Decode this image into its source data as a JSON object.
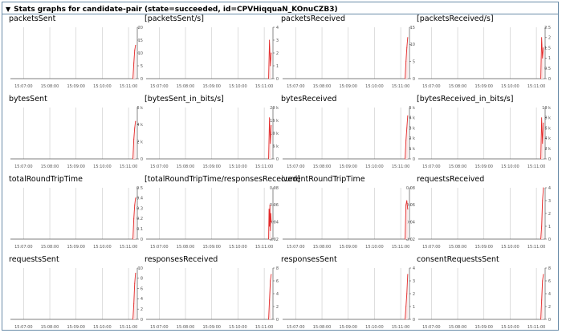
{
  "summary": {
    "toggle_icon": "triangle-down-icon",
    "text": "Stats graphs for candidate-pair (state=succeeded, id=CPVHiqquaN_KOnuCZB3)"
  },
  "colors": {
    "line": "#e32b2b",
    "fill": "#fbe2e2",
    "grid": "#c8c8c8",
    "axis": "#555555",
    "border": "#6a8ca8"
  },
  "time_ticks": [
    "15:07:00",
    "15:08:00",
    "15:09:00",
    "15:10:00",
    "15:11:00"
  ],
  "chart_data": [
    {
      "type": "line",
      "title": "packetsSent",
      "y_ticks": [
        "20",
        "15",
        "10",
        "5",
        "0"
      ],
      "ylim": [
        0,
        20
      ],
      "x": [
        "15:11:10",
        "15:11:12",
        "15:11:14",
        "15:11:16"
      ],
      "values": [
        0,
        6,
        11,
        13
      ]
    },
    {
      "type": "line",
      "title": "[packetsSent/s]",
      "y_ticks": [
        "4",
        "3",
        "2",
        "1",
        "0"
      ],
      "ylim": [
        0,
        4
      ],
      "x": [
        "15:11:10",
        "15:11:12",
        "15:11:14",
        "15:11:16"
      ],
      "values": [
        0,
        3,
        1,
        2
      ]
    },
    {
      "type": "line",
      "title": "packetsReceived",
      "y_ticks": [
        "15",
        "10",
        "5",
        "0"
      ],
      "ylim": [
        0,
        15
      ],
      "x": [
        "15:11:10",
        "15:11:12",
        "15:11:14",
        "15:11:16"
      ],
      "values": [
        0,
        5,
        9,
        12
      ]
    },
    {
      "type": "line",
      "title": "[packetsReceived/s]",
      "y_ticks": [
        "2.5",
        "2",
        "1.5",
        "1",
        "0.5",
        "0"
      ],
      "ylim": [
        0,
        2.5
      ],
      "x": [
        "15:11:10",
        "15:11:12",
        "15:11:14",
        "15:11:16"
      ],
      "values": [
        0,
        2,
        1,
        1.5
      ]
    },
    {
      "type": "line",
      "title": "bytesSent",
      "y_ticks": [
        "6 k",
        "4 k",
        "2 k",
        "0"
      ],
      "ylim": [
        0,
        6000
      ],
      "x": [
        "15:11:10",
        "15:11:12",
        "15:11:14",
        "15:11:16"
      ],
      "values": [
        0,
        2300,
        3600,
        4400
      ]
    },
    {
      "type": "line",
      "title": "[bytesSent_in_bits/s]",
      "y_ticks": [
        "20 k",
        "15 k",
        "10 k",
        "5 k",
        "0"
      ],
      "ylim": [
        0,
        20000
      ],
      "x": [
        "15:11:10",
        "15:11:12",
        "15:11:14",
        "15:11:16"
      ],
      "values": [
        0,
        16000,
        6000,
        13000
      ]
    },
    {
      "type": "line",
      "title": "bytesReceived",
      "y_ticks": [
        "5 k",
        "4 k",
        "3 k",
        "2 k",
        "1 k",
        "0"
      ],
      "ylim": [
        0,
        5000
      ],
      "x": [
        "15:11:10",
        "15:11:12",
        "15:11:14",
        "15:11:16"
      ],
      "values": [
        0,
        1800,
        3000,
        4200
      ]
    },
    {
      "type": "line",
      "title": "[bytesReceived_in_bits/s]",
      "y_ticks": [
        "10 k",
        "8 k",
        "6 k",
        "4 k",
        "2 k",
        "0"
      ],
      "ylim": [
        0,
        10000
      ],
      "x": [
        "15:11:10",
        "15:11:12",
        "15:11:14",
        "15:11:16"
      ],
      "values": [
        0,
        8000,
        3000,
        7000
      ]
    },
    {
      "type": "line",
      "title": "totalRoundTripTime",
      "y_ticks": [
        "0.5",
        "0.4",
        "0.3",
        "0.2",
        "0.1",
        "0"
      ],
      "ylim": [
        0,
        0.5
      ],
      "x": [
        "15:11:10",
        "15:11:12",
        "15:11:14",
        "15:11:16"
      ],
      "values": [
        0,
        0.2,
        0.33,
        0.4
      ]
    },
    {
      "type": "line",
      "title": "[totalRoundTripTime/responsesReceived]",
      "y_ticks": [
        "0.08",
        "0.06",
        "0.04",
        "0.02"
      ],
      "ylim": [
        0.02,
        0.08
      ],
      "x": [
        "15:11:10",
        "15:11:11",
        "15:11:12",
        "15:11:13",
        "15:11:14",
        "15:11:15",
        "15:11:16"
      ],
      "values": [
        0.02,
        0.055,
        0.035,
        0.06,
        0.03,
        0.05,
        0.04
      ]
    },
    {
      "type": "line",
      "title": "currentRoundTripTime",
      "y_ticks": [
        "0.08",
        "0.06",
        "0.04",
        "0.02"
      ],
      "ylim": [
        0.02,
        0.08
      ],
      "x": [
        "15:11:10",
        "15:11:12",
        "15:11:14",
        "15:11:16"
      ],
      "values": [
        0.02,
        0.06,
        0.065,
        0.055
      ]
    },
    {
      "type": "line",
      "title": "requestsReceived",
      "y_ticks": [
        "4",
        "3",
        "2",
        "1",
        "0"
      ],
      "ylim": [
        0,
        4
      ],
      "x": [
        "15:11:10",
        "15:11:12",
        "15:11:14",
        "15:11:16"
      ],
      "values": [
        0,
        1,
        3,
        4
      ]
    },
    {
      "type": "line",
      "title": "requestsSent",
      "y_ticks": [
        "10",
        "8",
        "6",
        "4",
        "2",
        "0"
      ],
      "ylim": [
        0,
        10
      ],
      "x": [
        "15:11:10",
        "15:11:12",
        "15:11:14",
        "15:11:16"
      ],
      "values": [
        0,
        3,
        7,
        9
      ]
    },
    {
      "type": "line",
      "title": "responsesReceived",
      "y_ticks": [
        "8",
        "6",
        "4",
        "2",
        "0"
      ],
      "ylim": [
        0,
        8
      ],
      "x": [
        "15:11:10",
        "15:11:12",
        "15:11:14",
        "15:11:16"
      ],
      "values": [
        0,
        3,
        6,
        7
      ]
    },
    {
      "type": "line",
      "title": "responsesSent",
      "y_ticks": [
        "4",
        "3",
        "2",
        "1",
        "0"
      ],
      "ylim": [
        0,
        4
      ],
      "x": [
        "15:11:10",
        "15:11:12",
        "15:11:14",
        "15:11:16"
      ],
      "values": [
        0,
        1,
        2,
        3.5
      ]
    },
    {
      "type": "line",
      "title": "consentRequestsSent",
      "y_ticks": [
        "8",
        "6",
        "4",
        "2",
        "0"
      ],
      "ylim": [
        0,
        8
      ],
      "x": [
        "15:11:10",
        "15:11:12",
        "15:11:14",
        "15:11:16"
      ],
      "values": [
        0,
        3,
        6,
        7
      ]
    }
  ]
}
